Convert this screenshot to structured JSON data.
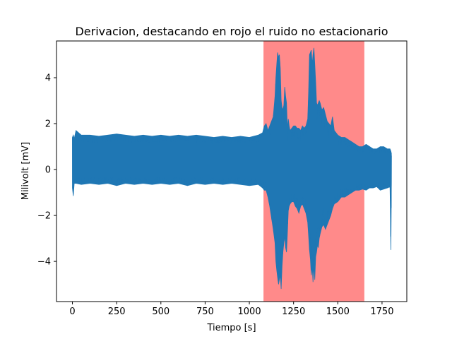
{
  "chart_data": {
    "type": "line",
    "title": "Derivacion, destacando en rojo el ruido no estacionario",
    "xlabel": "Tiempo [s]",
    "ylabel": "Milivolt [mV]",
    "xlim": [
      -90,
      1890
    ],
    "ylim": [
      -5.75,
      5.6
    ],
    "x_ticks": [
      0,
      250,
      500,
      750,
      1000,
      1250,
      1500,
      1750
    ],
    "x_tick_labels": [
      "0",
      "250",
      "500",
      "750",
      "1000",
      "1250",
      "1500",
      "1750"
    ],
    "y_ticks": [
      -4,
      -2,
      0,
      2,
      4
    ],
    "y_tick_labels": [
      "−4",
      "−2",
      "0",
      "2",
      "4"
    ],
    "grid": false,
    "highlight_region": {
      "x_start": 1080,
      "x_end": 1650,
      "color": "#ff8a8a"
    },
    "series": [
      {
        "color": "#1f77b4",
        "x": [
          0,
          5,
          10,
          20,
          50,
          100,
          150,
          200,
          250,
          300,
          350,
          400,
          450,
          500,
          550,
          600,
          650,
          700,
          750,
          800,
          850,
          900,
          950,
          1000,
          1050,
          1075,
          1085,
          1095,
          1105,
          1115,
          1125,
          1135,
          1145,
          1150,
          1155,
          1160,
          1165,
          1170,
          1175,
          1180,
          1185,
          1190,
          1195,
          1200,
          1205,
          1210,
          1215,
          1220,
          1225,
          1230,
          1240,
          1250,
          1260,
          1270,
          1280,
          1290,
          1300,
          1310,
          1320,
          1330,
          1335,
          1340,
          1345,
          1350,
          1355,
          1360,
          1365,
          1370,
          1375,
          1380,
          1385,
          1390,
          1395,
          1400,
          1410,
          1420,
          1430,
          1440,
          1450,
          1460,
          1470,
          1480,
          1500,
          1520,
          1540,
          1560,
          1580,
          1600,
          1620,
          1640,
          1660,
          1680,
          1700,
          1720,
          1740,
          1760,
          1780,
          1795,
          1800,
          1803
        ],
        "max": [
          1.4,
          1.5,
          1.35,
          1.7,
          1.5,
          1.5,
          1.45,
          1.5,
          1.55,
          1.5,
          1.45,
          1.5,
          1.45,
          1.5,
          1.45,
          1.5,
          1.45,
          1.5,
          1.45,
          1.4,
          1.45,
          1.4,
          1.45,
          1.4,
          1.5,
          1.6,
          1.9,
          2.0,
          1.7,
          1.9,
          2.1,
          2.3,
          3.2,
          4.0,
          4.6,
          5.1,
          4.9,
          5.0,
          4.4,
          3.0,
          2.7,
          2.6,
          2.8,
          3.6,
          3.2,
          2.9,
          1.8,
          2.2,
          1.9,
          1.7,
          1.8,
          1.9,
          1.9,
          1.8,
          1.8,
          1.7,
          1.9,
          1.8,
          1.9,
          2.2,
          3.4,
          5.0,
          5.1,
          5.2,
          4.6,
          5.0,
          5.3,
          4.6,
          3.8,
          2.9,
          2.8,
          2.9,
          3.0,
          2.9,
          2.6,
          2.7,
          2.4,
          2.1,
          2.0,
          1.9,
          2.3,
          1.7,
          1.5,
          1.4,
          1.4,
          1.3,
          1.2,
          1.1,
          1.0,
          1.0,
          1.1,
          1.0,
          0.9,
          0.9,
          1.0,
          1.0,
          0.9,
          0.9,
          0.8,
          0.7
        ],
        "min": [
          -0.8,
          -1.15,
          -0.6,
          -0.6,
          -0.65,
          -0.6,
          -0.65,
          -0.6,
          -0.7,
          -0.6,
          -0.65,
          -0.6,
          -0.65,
          -0.6,
          -0.65,
          -0.6,
          -0.7,
          -0.6,
          -0.65,
          -0.6,
          -0.65,
          -0.6,
          -0.65,
          -0.7,
          -0.65,
          -0.8,
          -0.9,
          -0.9,
          -1.2,
          -1.6,
          -2.1,
          -2.6,
          -3.2,
          -4.0,
          -4.4,
          -4.7,
          -5.0,
          -4.8,
          -4.6,
          -5.2,
          -4.2,
          -3.6,
          -3.2,
          -2.9,
          -3.4,
          -3.6,
          -2.8,
          -1.8,
          -1.6,
          -1.5,
          -1.4,
          -1.4,
          -1.6,
          -1.7,
          -1.9,
          -1.6,
          -1.5,
          -1.7,
          -1.9,
          -2.3,
          -2.9,
          -3.5,
          -3.9,
          -4.6,
          -4.2,
          -4.9,
          -4.2,
          -4.8,
          -3.8,
          -3.6,
          -3.3,
          -3.4,
          -3.0,
          -2.8,
          -2.5,
          -2.4,
          -2.6,
          -2.4,
          -2.2,
          -2.0,
          -1.7,
          -1.5,
          -1.4,
          -1.2,
          -1.2,
          -1.1,
          -1.0,
          -0.9,
          -0.9,
          -0.85,
          -0.9,
          -0.8,
          -0.8,
          -0.75,
          -0.9,
          -0.85,
          -0.8,
          -0.75,
          -3.5,
          -0.6
        ]
      }
    ]
  }
}
